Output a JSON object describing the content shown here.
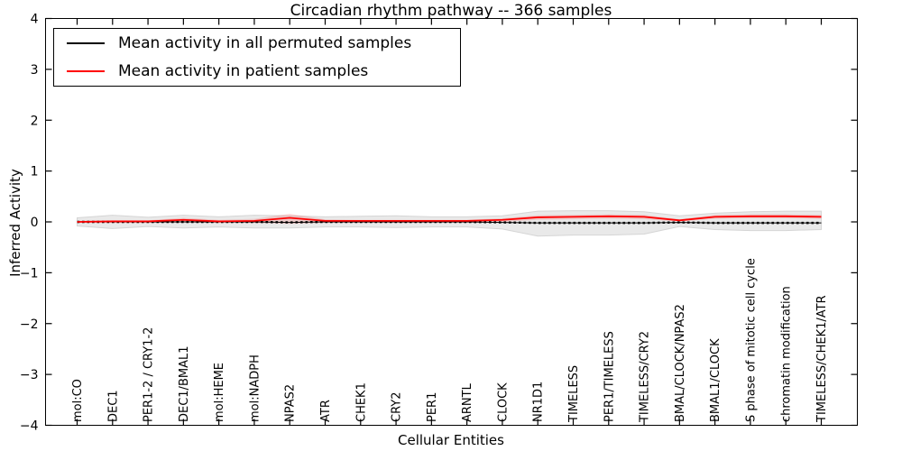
{
  "figure": {
    "title": "Circadian rhythm pathway -- 366 samples",
    "xlabel": "Cellular Entities",
    "ylabel": "Inferred Activity"
  },
  "legend": {
    "entries": [
      {
        "label": "Mean activity in all permuted samples",
        "color": "#000000"
      },
      {
        "label": "Mean activity in patient samples",
        "color": "#ff0000"
      }
    ]
  },
  "chart_data": {
    "type": "line",
    "title": "Circadian rhythm pathway -- 366 samples",
    "xlabel": "Cellular Entities",
    "ylabel": "Inferred Activity",
    "ylim": [
      -4,
      4
    ],
    "yticks": [
      4,
      3,
      2,
      1,
      0,
      -1,
      -2,
      -3,
      -4
    ],
    "ytick_labels": [
      "4",
      "3",
      "2",
      "1",
      "0",
      "−1",
      "−2",
      "−3",
      "−4"
    ],
    "grid": false,
    "legend_position": "upper left",
    "categories": [
      "mol:CO",
      "DEC1",
      "PER1-2 / CRY1-2",
      "DEC1/BMAL1",
      "mol:HEME",
      "mol:NADPH",
      "NPAS2",
      "ATR",
      "CHEK1",
      "CRY2",
      "PER1",
      "ARNTL",
      "CLOCK",
      "NR1D1",
      "TIMELESS",
      "PER1/TIMELESS",
      "TIMELESS/CRY2",
      "BMAL/CLOCK/NPAS2",
      "BMAL1/CLOCK",
      "S phase of mitotic cell cycle",
      "chromatin modification",
      "TIMELESS/CHEK1/ATR"
    ],
    "series": [
      {
        "name": "Mean activity in all permuted samples",
        "color": "#000000",
        "style": "dashed",
        "values": [
          0.0,
          0.0,
          0.0,
          0.0,
          0.0,
          0.0,
          -0.01,
          0.0,
          0.0,
          0.0,
          0.0,
          0.0,
          -0.01,
          -0.02,
          -0.02,
          -0.02,
          -0.02,
          -0.01,
          -0.02,
          -0.02,
          -0.02,
          -0.02
        ]
      },
      {
        "name": "Mean activity in patient samples",
        "color": "#ff0000",
        "style": "solid",
        "values": [
          0.0,
          0.01,
          0.01,
          0.04,
          0.01,
          0.02,
          0.08,
          0.02,
          0.02,
          0.02,
          0.02,
          0.02,
          0.04,
          0.09,
          0.1,
          0.11,
          0.1,
          0.03,
          0.1,
          0.11,
          0.11,
          0.1
        ]
      }
    ],
    "bands": [
      {
        "name": "permuted-range",
        "color": "#e9e9e9",
        "edge": "#d5d5d5",
        "opacity": 1,
        "upper": [
          0.08,
          0.13,
          0.09,
          0.13,
          0.1,
          0.13,
          0.12,
          0.1,
          0.11,
          0.12,
          0.1,
          0.1,
          0.12,
          0.21,
          0.22,
          0.22,
          0.2,
          0.12,
          0.17,
          0.2,
          0.21,
          0.21
        ],
        "lower": [
          -0.08,
          -0.13,
          -0.09,
          -0.12,
          -0.1,
          -0.12,
          -0.12,
          -0.1,
          -0.1,
          -0.11,
          -0.1,
          -0.1,
          -0.14,
          -0.28,
          -0.26,
          -0.26,
          -0.24,
          -0.09,
          -0.15,
          -0.17,
          -0.17,
          -0.15
        ]
      },
      {
        "name": "patient-range",
        "color": "#ff0000",
        "edge": "none",
        "opacity": 0.14,
        "upper": [
          0.02,
          0.03,
          0.03,
          0.08,
          0.04,
          0.06,
          0.16,
          0.05,
          0.04,
          0.04,
          0.04,
          0.04,
          0.07,
          0.13,
          0.14,
          0.15,
          0.14,
          0.05,
          0.14,
          0.15,
          0.15,
          0.14
        ],
        "lower": [
          -0.02,
          -0.02,
          -0.02,
          -0.01,
          -0.02,
          -0.02,
          -0.04,
          -0.02,
          -0.02,
          -0.02,
          -0.02,
          -0.02,
          0.0,
          0.04,
          0.05,
          0.06,
          0.05,
          0.01,
          0.06,
          0.07,
          0.07,
          0.06
        ]
      }
    ]
  }
}
